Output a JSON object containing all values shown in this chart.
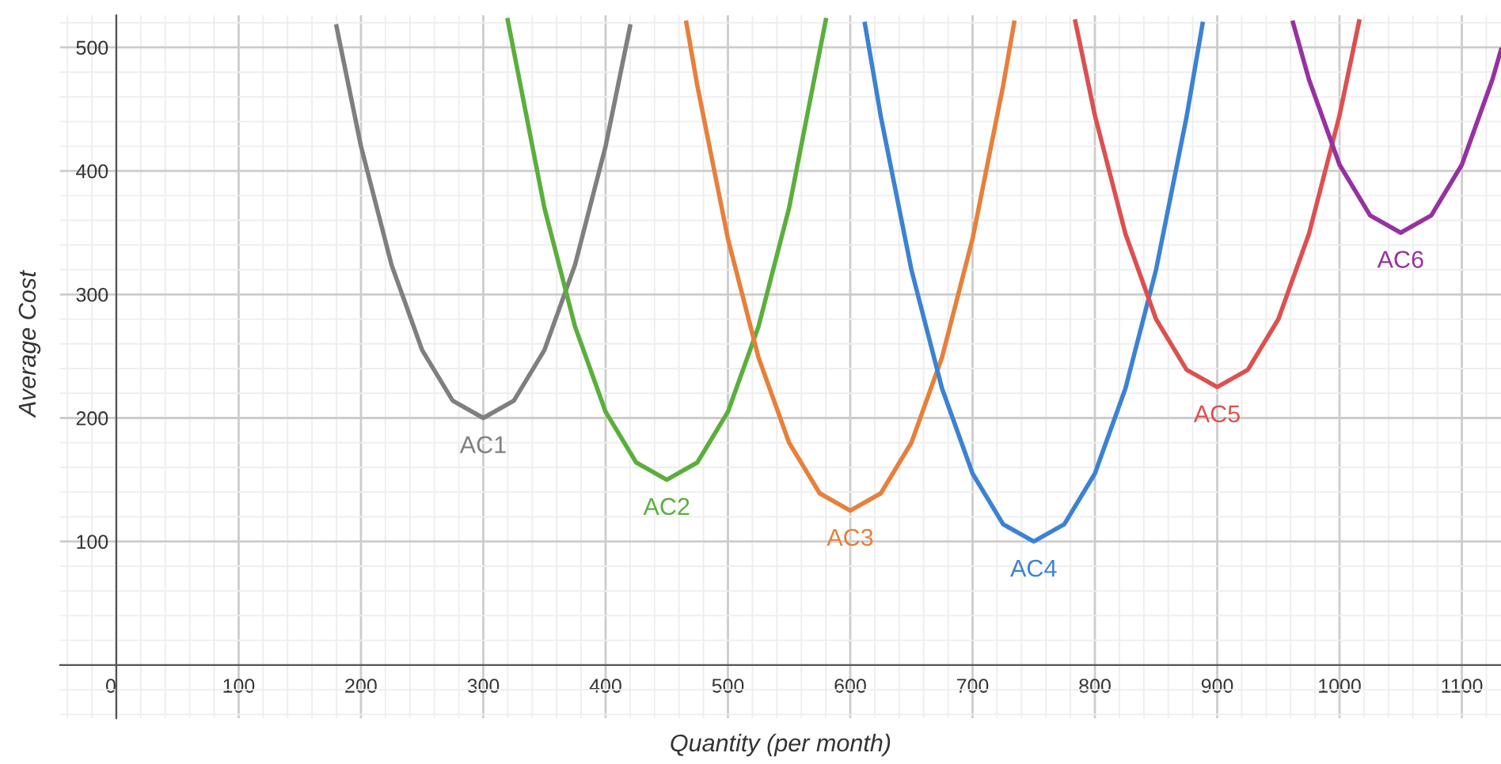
{
  "chart_data": {
    "type": "line",
    "xlabel": "Quantity (per month)",
    "ylabel": "Average Cost",
    "xlim": [
      -46,
      1132
    ],
    "ylim": [
      -43,
      526
    ],
    "xticks": [
      0,
      100,
      200,
      300,
      400,
      500,
      600,
      700,
      800,
      900,
      1000,
      1100
    ],
    "yticks": [
      100,
      200,
      300,
      400,
      500
    ],
    "grid": true,
    "legend": false,
    "marker": "none",
    "line_style": "solid",
    "series": [
      {
        "name": "AC1",
        "color": "#7f7f7f",
        "x": [
          180,
          200,
          225,
          250,
          275,
          300,
          325,
          350,
          375,
          400,
          420
        ],
        "values": [
          517,
          420,
          324,
          255,
          214,
          200,
          214,
          255,
          324,
          420,
          517
        ]
      },
      {
        "name": "AC2",
        "color": "#5aaf3c",
        "x": [
          320,
          350,
          375,
          400,
          425,
          450,
          475,
          500,
          525,
          550,
          580
        ],
        "values": [
          522,
          370,
          274,
          205,
          164,
          150,
          164,
          205,
          274,
          370,
          522
        ]
      },
      {
        "name": "AC3",
        "color": "#e6803c",
        "x": [
          466,
          475,
          500,
          525,
          550,
          575,
          600,
          625,
          650,
          675,
          700,
          725,
          734
        ],
        "values": [
          520,
          469,
          345,
          249,
          180,
          139,
          125,
          139,
          180,
          249,
          345,
          469,
          520
        ]
      },
      {
        "name": "AC4",
        "color": "#3c82d2",
        "x": [
          612,
          625,
          650,
          675,
          700,
          725,
          750,
          775,
          800,
          825,
          850,
          875,
          888
        ],
        "values": [
          519,
          444,
          320,
          224,
          155,
          114,
          100,
          114,
          155,
          224,
          320,
          444,
          519
        ]
      },
      {
        "name": "AC5",
        "color": "#dc5050",
        "x": [
          784,
          800,
          825,
          850,
          875,
          900,
          925,
          950,
          975,
          1000,
          1016
        ],
        "values": [
          521,
          445,
          349,
          280,
          239,
          225,
          239,
          280,
          349,
          445,
          521
        ]
      },
      {
        "name": "AC6",
        "color": "#9632a0",
        "x": [
          962,
          975,
          1000,
          1025,
          1050,
          1075,
          1100,
          1125,
          1132
        ],
        "values": [
          520,
          474,
          405,
          364,
          350,
          364,
          405,
          474,
          498
        ]
      }
    ]
  }
}
